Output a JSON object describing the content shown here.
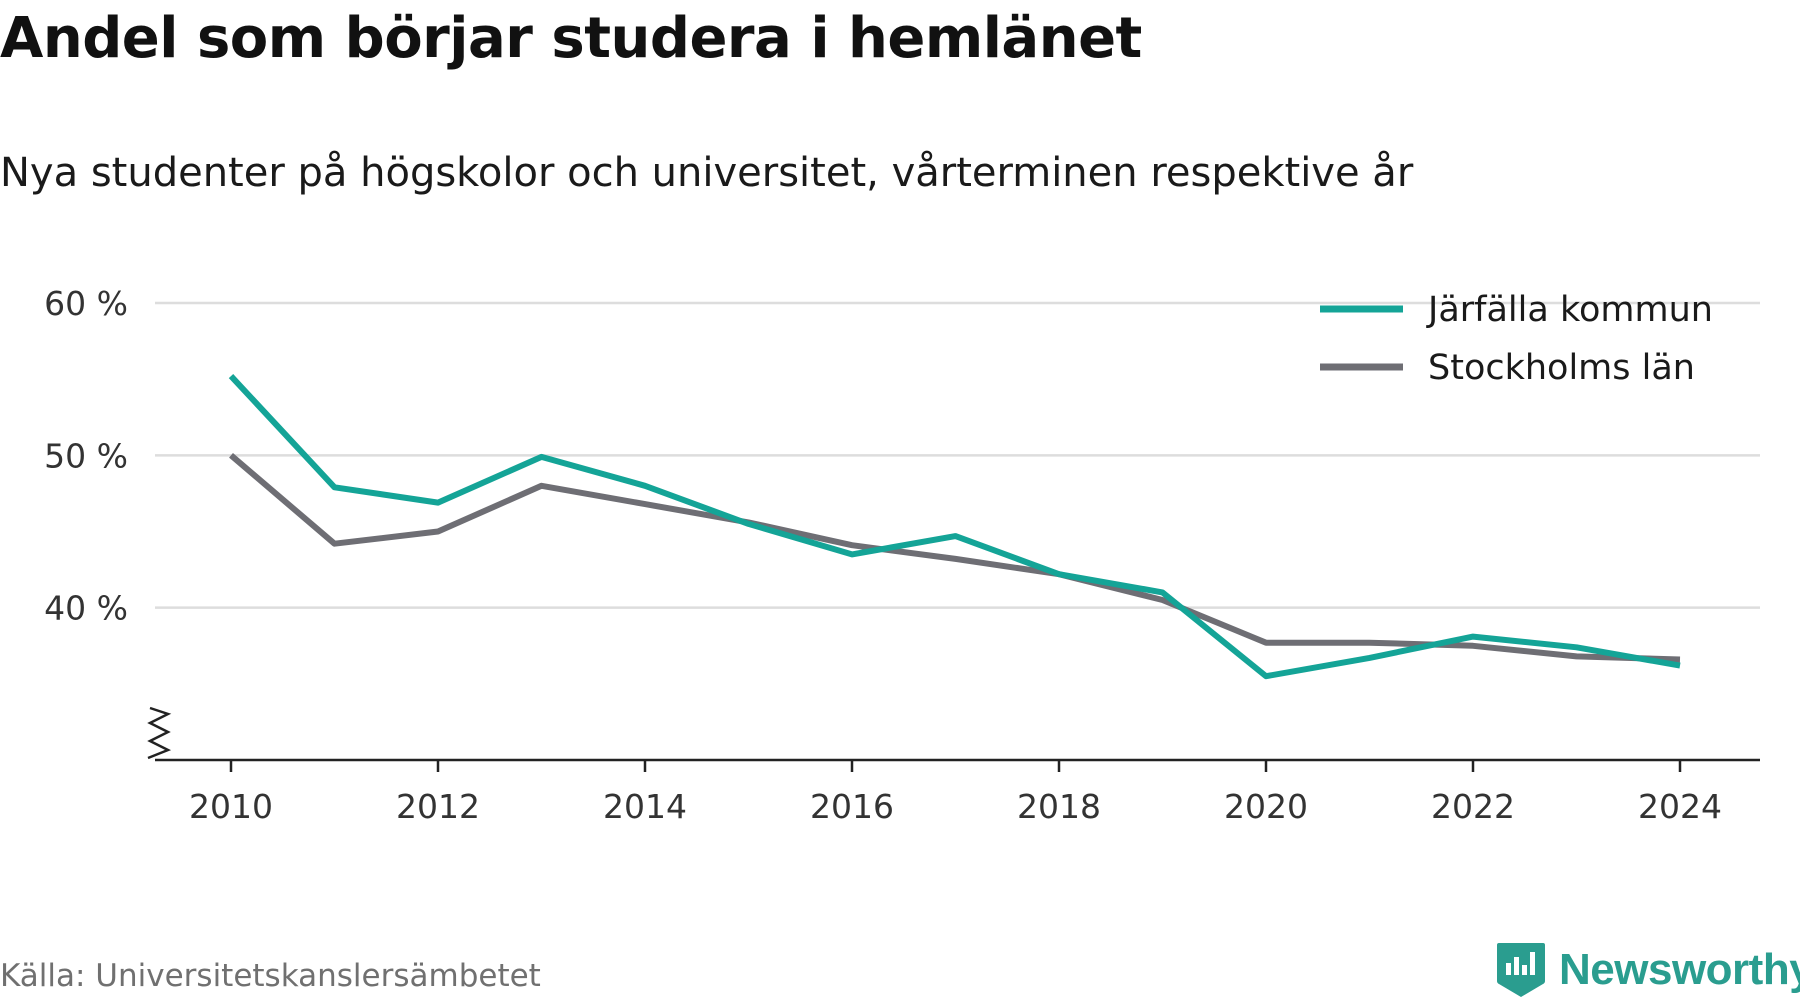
{
  "title": "Andel som börjar studera i hemlänet",
  "subtitle": "Nya studenter på högskolor och universitet, vårterminen respektive år",
  "source": "Källa: Universitetskanslersämbetet",
  "brand": "Newsworthy",
  "colors": {
    "accent": "#14a497",
    "secondary": "#6e6e74",
    "grid": "#dddddd",
    "brand": "#2a9d8f"
  },
  "chart_data": {
    "type": "line",
    "x": [
      2010,
      2011,
      2012,
      2013,
      2014,
      2015,
      2016,
      2017,
      2018,
      2019,
      2020,
      2021,
      2022,
      2023,
      2024
    ],
    "series": [
      {
        "name": "Järfälla kommun",
        "color": "#14a497",
        "values": [
          55.2,
          47.9,
          46.9,
          49.9,
          48.0,
          45.5,
          43.5,
          44.7,
          42.2,
          41.0,
          35.5,
          36.7,
          38.1,
          37.4,
          36.2
        ]
      },
      {
        "name": "Stockholms län",
        "color": "#6e6e74",
        "values": [
          50.0,
          44.2,
          45.0,
          48.0,
          46.8,
          45.6,
          44.1,
          43.2,
          42.2,
          40.5,
          37.7,
          37.7,
          37.5,
          36.8,
          36.6
        ]
      }
    ],
    "yticks": [
      40,
      50,
      60
    ],
    "ytick_labels": [
      "40 %",
      "50 %",
      "60 %"
    ],
    "xticks": [
      2010,
      2012,
      2014,
      2016,
      2018,
      2020,
      2022,
      2024
    ],
    "ylim": [
      30,
      60
    ],
    "xlim": [
      2010,
      2024
    ],
    "y_axis_break": true,
    "grid": true,
    "legend_position": "top-right"
  }
}
